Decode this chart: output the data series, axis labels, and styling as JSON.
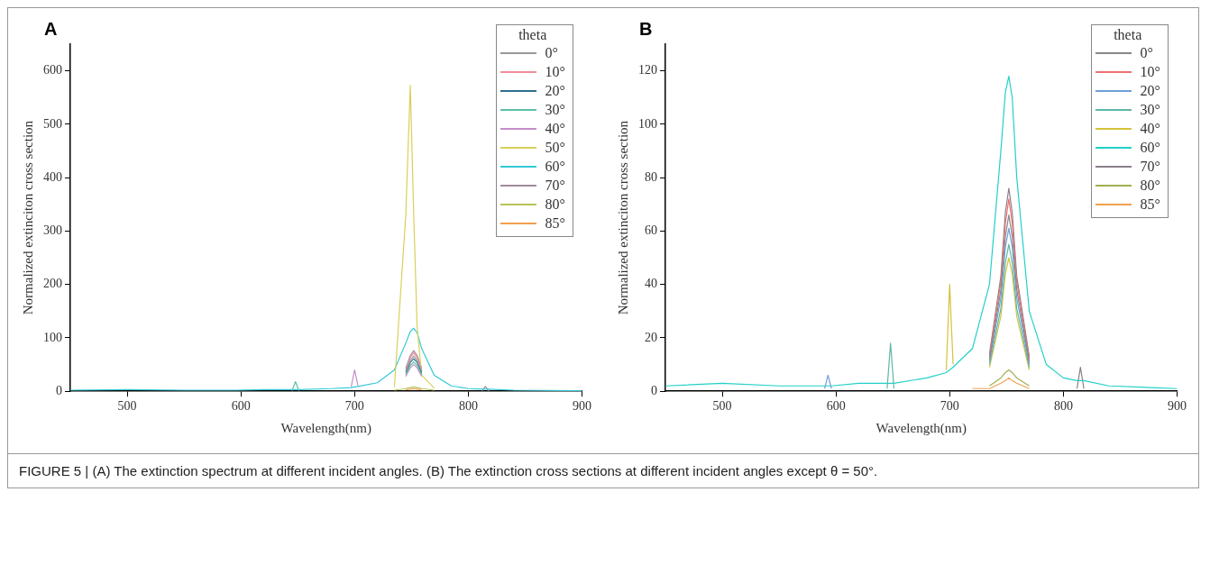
{
  "chart_data": [
    {
      "type": "line",
      "title": "A",
      "xlabel": "Wavelength(nm)",
      "ylabel": "Normalized extinciton cross section",
      "legend_title": "theta",
      "legend": "top right",
      "marker": "none",
      "grid": false,
      "annotations": [
        "FIGURE 5 | (A) The extinction spectrum at different incident angles. (B) The extinction cross sections at different incident angles except θ = 50°."
      ],
      "x": [
        450,
        500,
        550,
        590,
        593,
        596,
        620,
        645,
        648,
        651,
        680,
        697,
        700,
        703,
        720,
        735,
        745,
        749,
        752,
        755,
        759,
        770,
        785,
        800,
        812,
        815,
        818,
        840,
        900
      ],
      "xlim": [
        450,
        900
      ],
      "xticks": [
        500,
        600,
        700,
        800,
        900
      ],
      "ylim": [
        0,
        650
      ],
      "yticks": [
        0,
        100,
        200,
        300,
        400,
        500,
        600
      ],
      "series": [
        {
          "name": "0°",
          "color": "#999999",
          "values": [
            null,
            null,
            null,
            null,
            null,
            null,
            null,
            null,
            null,
            null,
            null,
            null,
            null,
            null,
            null,
            null,
            38,
            58,
            66,
            58,
            38,
            null,
            null,
            null,
            null,
            null,
            null,
            null,
            null
          ]
        },
        {
          "name": "10°",
          "color": "#f28c9c",
          "values": [
            null,
            null,
            null,
            null,
            null,
            null,
            null,
            null,
            null,
            null,
            null,
            null,
            null,
            null,
            null,
            null,
            41,
            63,
            72,
            63,
            41,
            null,
            null,
            null,
            null,
            null,
            null,
            null,
            null
          ]
        },
        {
          "name": "20°",
          "color": "#2f6f8f",
          "values": [
            null,
            null,
            null,
            null,
            null,
            null,
            null,
            null,
            null,
            null,
            null,
            null,
            null,
            null,
            null,
            null,
            35,
            54,
            61,
            54,
            35,
            null,
            null,
            null,
            null,
            null,
            null,
            null,
            null
          ]
        },
        {
          "name": "30°",
          "color": "#5bbfa8",
          "values": [
            null,
            null,
            null,
            null,
            null,
            null,
            null,
            1,
            18,
            1,
            null,
            null,
            null,
            null,
            null,
            null,
            31,
            48,
            55,
            48,
            31,
            null,
            null,
            null,
            null,
            null,
            null,
            null,
            null
          ]
        },
        {
          "name": "40°",
          "color": "#c58fc9",
          "values": [
            null,
            null,
            null,
            null,
            null,
            null,
            null,
            null,
            null,
            null,
            null,
            8,
            40,
            10,
            null,
            null,
            28,
            44,
            50,
            44,
            28,
            null,
            null,
            null,
            null,
            null,
            null,
            null,
            null
          ]
        },
        {
          "name": "50°",
          "color": "#d9cf5a",
          "values": [
            null,
            null,
            null,
            null,
            null,
            null,
            null,
            null,
            null,
            null,
            null,
            null,
            null,
            null,
            null,
            8,
            330,
            573,
            330,
            120,
            30,
            6,
            null,
            null,
            null,
            null,
            null,
            null,
            null
          ]
        },
        {
          "name": "60°",
          "color": "#33c9d6",
          "values": [
            2,
            3,
            2,
            2,
            2,
            2,
            3,
            3,
            3,
            3,
            5,
            7,
            8,
            9,
            16,
            40,
            90,
            112,
            118,
            110,
            80,
            30,
            10,
            5,
            4,
            4,
            4,
            2,
            1
          ]
        },
        {
          "name": "70°",
          "color": "#a08a9a",
          "values": [
            null,
            null,
            null,
            null,
            null,
            null,
            null,
            null,
            null,
            null,
            null,
            null,
            null,
            null,
            null,
            null,
            43,
            67,
            76,
            67,
            43,
            null,
            null,
            null,
            1,
            9,
            1,
            null,
            null
          ]
        },
        {
          "name": "80°",
          "color": "#b8c25a",
          "values": [
            null,
            null,
            null,
            null,
            null,
            null,
            null,
            null,
            null,
            null,
            null,
            null,
            null,
            null,
            null,
            2,
            5,
            7,
            8,
            7,
            5,
            2,
            null,
            null,
            null,
            null,
            null,
            null,
            null
          ]
        },
        {
          "name": "85°",
          "color": "#f0a050",
          "values": [
            null,
            null,
            null,
            null,
            null,
            null,
            null,
            null,
            null,
            null,
            null,
            null,
            null,
            null,
            null,
            null,
            3,
            4,
            5,
            4,
            3,
            null,
            null,
            null,
            null,
            null,
            null,
            null,
            null
          ]
        }
      ]
    },
    {
      "type": "line",
      "title": "B",
      "xlabel": "Wavelength(nm)",
      "ylabel": "Normalized extinciton cross section",
      "legend_title": "theta",
      "legend": "top right",
      "marker": "none",
      "grid": false,
      "x": [
        450,
        500,
        550,
        590,
        593,
        596,
        620,
        645,
        648,
        651,
        680,
        697,
        700,
        703,
        720,
        735,
        745,
        749,
        752,
        755,
        759,
        770,
        785,
        800,
        812,
        815,
        818,
        840,
        900
      ],
      "xlim": [
        450,
        900
      ],
      "xticks": [
        500,
        600,
        700,
        800,
        900
      ],
      "ylim": [
        0,
        130
      ],
      "yticks": [
        0,
        20,
        40,
        60,
        80,
        100,
        120
      ],
      "series": [
        {
          "name": "0°",
          "color": "#888888",
          "values": [
            null,
            null,
            null,
            null,
            null,
            null,
            null,
            null,
            null,
            null,
            null,
            null,
            null,
            null,
            null,
            12,
            38,
            58,
            66,
            58,
            38,
            11,
            null,
            null,
            null,
            null,
            null,
            null,
            null
          ]
        },
        {
          "name": "10°",
          "color": "#f07070",
          "values": [
            null,
            null,
            null,
            null,
            null,
            null,
            null,
            null,
            null,
            null,
            null,
            null,
            null,
            null,
            null,
            13,
            41,
            63,
            72,
            63,
            41,
            12,
            null,
            null,
            null,
            null,
            null,
            null,
            null
          ]
        },
        {
          "name": "20°",
          "color": "#6fa0d8",
          "values": [
            null,
            null,
            null,
            1,
            6,
            1,
            null,
            null,
            null,
            null,
            null,
            null,
            null,
            null,
            null,
            11,
            35,
            54,
            61,
            54,
            35,
            10,
            null,
            null,
            null,
            null,
            null,
            null,
            null
          ]
        },
        {
          "name": "30°",
          "color": "#5cb8a8",
          "values": [
            null,
            null,
            null,
            null,
            null,
            null,
            null,
            1,
            18,
            1,
            null,
            null,
            null,
            null,
            null,
            10,
            31,
            48,
            55,
            48,
            31,
            9,
            null,
            null,
            null,
            null,
            null,
            null,
            null
          ]
        },
        {
          "name": "40°",
          "color": "#d4c23a",
          "values": [
            null,
            null,
            null,
            null,
            null,
            null,
            null,
            null,
            null,
            null,
            null,
            8,
            40,
            10,
            null,
            9,
            28,
            44,
            50,
            44,
            28,
            8,
            null,
            null,
            null,
            null,
            null,
            null,
            null
          ]
        },
        {
          "name": "60°",
          "color": "#22d0c8",
          "values": [
            2,
            3,
            2,
            2,
            2,
            2,
            3,
            3,
            3,
            3,
            5,
            7,
            8,
            9,
            16,
            40,
            90,
            112,
            118,
            110,
            80,
            30,
            10,
            5,
            4,
            4,
            4,
            2,
            1
          ]
        },
        {
          "name": "70°",
          "color": "#8a7f8a",
          "values": [
            null,
            null,
            null,
            null,
            null,
            null,
            null,
            null,
            null,
            null,
            null,
            null,
            null,
            null,
            null,
            14,
            43,
            67,
            76,
            67,
            43,
            13,
            null,
            null,
            1,
            9,
            1,
            null,
            null
          ]
        },
        {
          "name": "80°",
          "color": "#a0b050",
          "values": [
            null,
            null,
            null,
            null,
            null,
            null,
            null,
            null,
            null,
            null,
            null,
            null,
            null,
            null,
            null,
            2,
            5,
            7,
            8,
            7,
            5,
            2,
            null,
            null,
            null,
            null,
            null,
            null,
            null
          ]
        },
        {
          "name": "85°",
          "color": "#f0a050",
          "values": [
            null,
            null,
            null,
            null,
            null,
            null,
            null,
            null,
            null,
            null,
            null,
            null,
            null,
            null,
            1,
            1,
            3,
            4,
            5,
            4,
            3,
            1,
            null,
            null,
            null,
            null,
            null,
            null,
            null
          ]
        }
      ]
    }
  ]
}
